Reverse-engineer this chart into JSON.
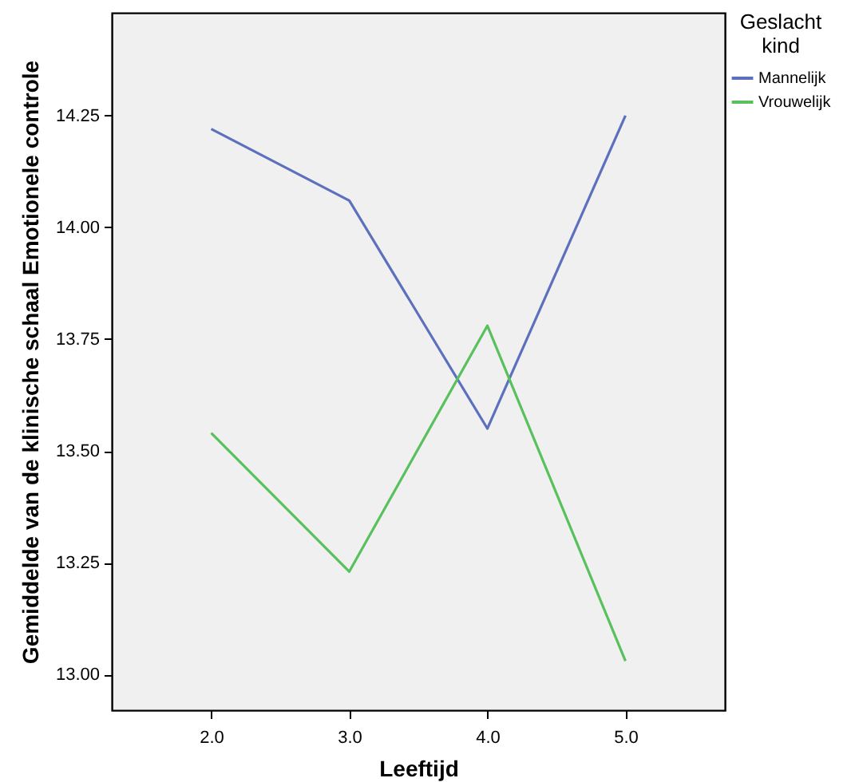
{
  "chart_data": {
    "type": "line",
    "xlabel": "Leeftijd",
    "ylabel": "Gemiddelde van de klinische schaal Emotionele controle",
    "legend_title": "Geslacht kind",
    "legend": "top right",
    "grid": false,
    "marker": "none",
    "line_style": "solid",
    "x": [
      2.0,
      3.0,
      4.0,
      5.0
    ],
    "xlim": [
      1.28,
      5.72
    ],
    "xticks": [
      {
        "value": 2,
        "label": "2.0"
      },
      {
        "value": 3,
        "label": "3.0"
      },
      {
        "value": 4,
        "label": "4.0"
      },
      {
        "value": 5,
        "label": "5.0"
      }
    ],
    "ylim": [
      12.92,
      14.48
    ],
    "yticks": [
      {
        "value": 13,
        "label": "13.00"
      },
      {
        "value": 13.25,
        "label": "13.25"
      },
      {
        "value": 13.5,
        "label": "13.50"
      },
      {
        "value": 13.75,
        "label": "13.75"
      },
      {
        "value": 14,
        "label": "14.00"
      },
      {
        "value": 14.25,
        "label": "14.25"
      }
    ],
    "series": [
      {
        "name": "Mannelijk",
        "color": "#5d70bd",
        "values": [
          14.22,
          14.06,
          13.55,
          14.25
        ]
      },
      {
        "name": "Vrouwelijk",
        "color": "#58c05c",
        "values": [
          13.54,
          13.23,
          13.78,
          13.03
        ]
      }
    ]
  }
}
